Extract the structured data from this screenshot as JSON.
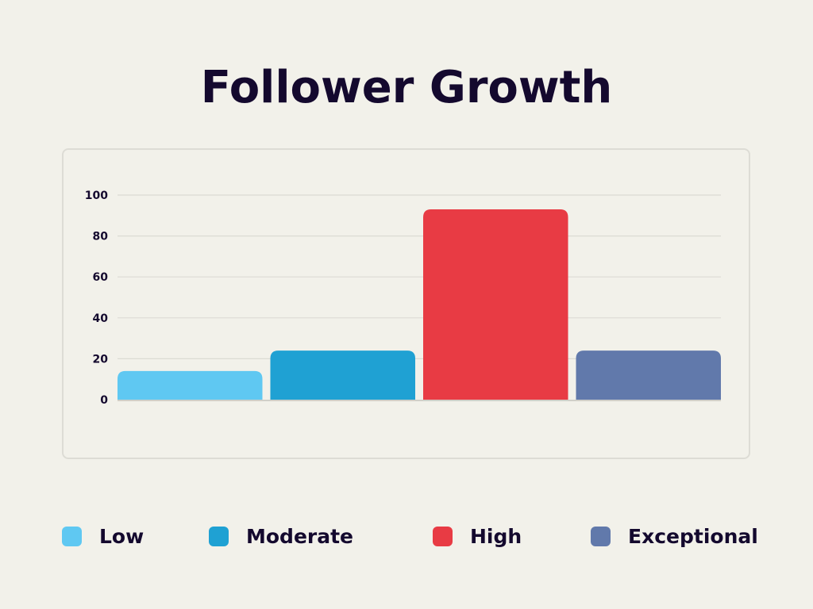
{
  "chart_data": {
    "type": "bar",
    "title": "Follower Growth",
    "categories": [
      "Low",
      "Moderate",
      "High",
      "Exceptional"
    ],
    "values": [
      14,
      24,
      93,
      24
    ],
    "colors": [
      "#5fc8f2",
      "#1fa1d3",
      "#e83b44",
      "#6179ab"
    ],
    "ylim": [
      0,
      100
    ],
    "yticks": [
      0,
      20,
      40,
      60,
      80,
      100
    ],
    "xlabel": "",
    "ylabel": "",
    "grid": true,
    "legend": "bottom"
  }
}
